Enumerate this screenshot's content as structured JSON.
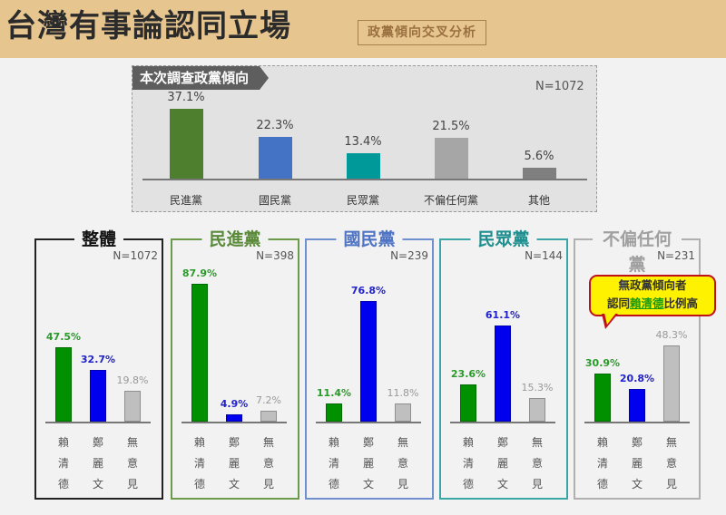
{
  "header": {
    "title": "台灣有事論認同立場",
    "subtitle": "政黨傾向交叉分析"
  },
  "colors": {
    "header_bg": "#e6c58f",
    "lai": "#009000",
    "cheng": "#0000ee",
    "none": "#bfbfbf",
    "dpp": "#4e7f2e",
    "kmt": "#4472c4",
    "tpp": "#00999a",
    "neutral": "#a6a6a6",
    "other": "#7f7f7f"
  },
  "top_chart": {
    "tag": "本次調查政黨傾向",
    "n": "N=1072"
  },
  "callout": {
    "line1": "無政黨傾向者",
    "line2_pre": "認同",
    "line2_hl": "賴清德",
    "line2_post": "比例高"
  },
  "chart_data": [
    {
      "type": "bar",
      "title": "本次調查政黨傾向",
      "annotation": "N=1072",
      "categories": [
        "民進黨",
        "國民黨",
        "民眾黨",
        "不偏任何黨",
        "其他"
      ],
      "values": [
        37.1,
        22.3,
        13.4,
        21.5,
        5.6
      ],
      "labels": [
        "37.1%",
        "22.3%",
        "13.4%",
        "21.5%",
        "5.6%"
      ],
      "colors": [
        "#4e7f2e",
        "#4472c4",
        "#00999a",
        "#a6a6a6",
        "#7f7f7f"
      ],
      "xlabel": "",
      "ylabel": "",
      "grid": false
    },
    {
      "type": "bar",
      "title": "整體",
      "annotation": "N=1072",
      "categories": [
        "賴清德",
        "鄭麗文",
        "無意見"
      ],
      "values": [
        47.5,
        32.7,
        19.8
      ],
      "labels": [
        "47.5%",
        "32.7%",
        "19.8%"
      ]
    },
    {
      "type": "bar",
      "title": "民進黨",
      "annotation": "N=398",
      "categories": [
        "賴清德",
        "鄭麗文",
        "無意見"
      ],
      "values": [
        87.9,
        4.9,
        7.2
      ],
      "labels": [
        "87.9%",
        "4.9%",
        "7.2%"
      ]
    },
    {
      "type": "bar",
      "title": "國民黨",
      "annotation": "N=239",
      "categories": [
        "賴清德",
        "鄭麗文",
        "無意見"
      ],
      "values": [
        11.4,
        76.8,
        11.8
      ],
      "labels": [
        "11.4%",
        "76.8%",
        "11.8%"
      ]
    },
    {
      "type": "bar",
      "title": "民眾黨",
      "annotation": "N=144",
      "categories": [
        "賴清德",
        "鄭麗文",
        "無意見"
      ],
      "values": [
        23.6,
        61.1,
        15.3
      ],
      "labels": [
        "23.6%",
        "61.1%",
        "15.3%"
      ]
    },
    {
      "type": "bar",
      "title": "不偏任何黨",
      "annotation": "N=231",
      "categories": [
        "賴清德",
        "鄭麗文",
        "無意見"
      ],
      "values": [
        30.9,
        20.8,
        48.3
      ],
      "labels": [
        "30.9%",
        "20.8%",
        "48.3%"
      ]
    }
  ],
  "panels": [
    {
      "title": "整體",
      "n": "N=1072",
      "border": "#222222",
      "title_color": "#111111"
    },
    {
      "title": "民進黨",
      "n": "N=398",
      "border": "#6a9a4a",
      "title_color": "#5a8a3a"
    },
    {
      "title": "國民黨",
      "n": "N=239",
      "border": "#6f8fcf",
      "title_color": "#4f74c4"
    },
    {
      "title": "民眾黨",
      "n": "N=144",
      "border": "#3aa6a6",
      "title_color": "#1f8f8f"
    },
    {
      "title": "不偏任何黨",
      "n": "N=231",
      "border": "#b0b0b0",
      "title_color": "#a0a0a0"
    }
  ],
  "candidate_labels": [
    [
      "賴",
      "清",
      "德"
    ],
    [
      "鄭",
      "麗",
      "文"
    ],
    [
      "無",
      "意",
      "見"
    ]
  ]
}
